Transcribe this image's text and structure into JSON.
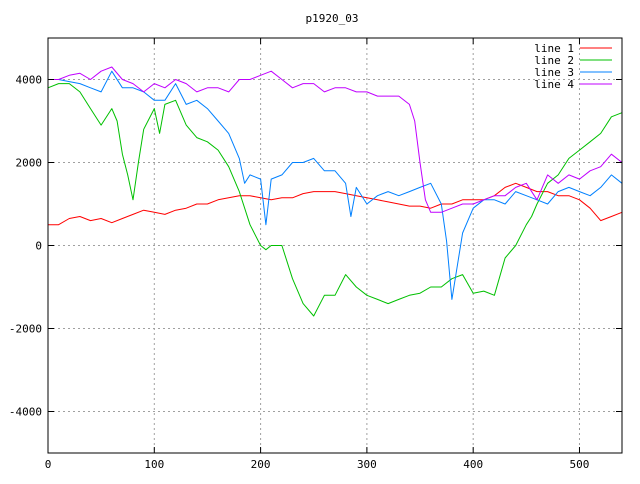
{
  "chart_data": {
    "type": "line",
    "title": "p1920_03",
    "xlabel": "",
    "ylabel": "",
    "xlim": [
      0,
      540
    ],
    "ylim": [
      -5000,
      5000
    ],
    "x_ticks": [
      0,
      100,
      200,
      300,
      400,
      500
    ],
    "y_ticks": [
      -4000,
      -2000,
      0,
      2000,
      4000
    ],
    "x_tick_labels": [
      "0",
      "100",
      "200",
      "300",
      "400",
      "500"
    ],
    "y_tick_labels": [
      "-4000",
      "-2000",
      "0",
      "2000",
      "4000"
    ],
    "grid": true,
    "legend_position": "top-right",
    "series": [
      {
        "name": "line 1",
        "color": "#ff0000",
        "x": [
          0,
          10,
          20,
          30,
          40,
          50,
          60,
          70,
          80,
          90,
          100,
          110,
          120,
          130,
          140,
          150,
          160,
          170,
          180,
          190,
          200,
          210,
          220,
          230,
          240,
          250,
          260,
          270,
          280,
          290,
          300,
          310,
          320,
          330,
          340,
          350,
          360,
          370,
          380,
          390,
          400,
          410,
          420,
          430,
          440,
          450,
          460,
          470,
          480,
          490,
          500,
          510,
          520,
          530,
          540
        ],
        "values": [
          500,
          500,
          650,
          700,
          600,
          650,
          550,
          650,
          750,
          850,
          800,
          750,
          850,
          900,
          1000,
          1000,
          1100,
          1150,
          1200,
          1200,
          1150,
          1100,
          1150,
          1150,
          1250,
          1300,
          1300,
          1300,
          1250,
          1200,
          1150,
          1100,
          1050,
          1000,
          950,
          950,
          900,
          1000,
          1000,
          1100,
          1100,
          1100,
          1200,
          1400,
          1500,
          1400,
          1300,
          1300,
          1200,
          1200,
          1100,
          900,
          600,
          700,
          800
        ]
      },
      {
        "name": "line 2",
        "color": "#00c000",
        "x": [
          0,
          10,
          20,
          30,
          40,
          50,
          60,
          65,
          70,
          75,
          80,
          85,
          90,
          100,
          105,
          110,
          120,
          130,
          140,
          150,
          160,
          170,
          180,
          190,
          200,
          205,
          210,
          220,
          230,
          240,
          250,
          260,
          270,
          280,
          290,
          300,
          310,
          320,
          330,
          340,
          350,
          360,
          370,
          380,
          390,
          400,
          410,
          420,
          430,
          440,
          450,
          455,
          460,
          470,
          480,
          490,
          500,
          510,
          520,
          530,
          540
        ],
        "values": [
          3800,
          3900,
          3900,
          3700,
          3300,
          2900,
          3300,
          3000,
          2200,
          1700,
          1100,
          2000,
          2800,
          3300,
          2700,
          3400,
          3500,
          2900,
          2600,
          2500,
          2300,
          1900,
          1300,
          500,
          0,
          -100,
          0,
          0,
          -800,
          -1400,
          -1700,
          -1200,
          -1200,
          -700,
          -1000,
          -1200,
          -1300,
          -1400,
          -1300,
          -1200,
          -1150,
          -1000,
          -1000,
          -800,
          -700,
          -1150,
          -1100,
          -1200,
          -300,
          0,
          500,
          700,
          1000,
          1500,
          1700,
          2100,
          2300,
          2500,
          2700,
          3100,
          3200
        ]
      },
      {
        "name": "line 3",
        "color": "#0080ff",
        "x": [
          0,
          10,
          20,
          30,
          40,
          50,
          60,
          70,
          80,
          90,
          100,
          110,
          120,
          130,
          140,
          150,
          160,
          170,
          180,
          185,
          190,
          200,
          205,
          210,
          220,
          230,
          240,
          250,
          260,
          270,
          280,
          285,
          290,
          300,
          310,
          320,
          330,
          340,
          350,
          360,
          370,
          375,
          380,
          390,
          400,
          410,
          420,
          430,
          440,
          450,
          460,
          470,
          480,
          490,
          500,
          510,
          520,
          530,
          540
        ],
        "values": [
          4000,
          4000,
          3950,
          3900,
          3800,
          3700,
          4200,
          3800,
          3800,
          3700,
          3500,
          3500,
          3900,
          3400,
          3500,
          3300,
          3000,
          2700,
          2100,
          1500,
          1700,
          1600,
          500,
          1600,
          1700,
          2000,
          2000,
          2100,
          1800,
          1800,
          1500,
          700,
          1400,
          1000,
          1200,
          1300,
          1200,
          1300,
          1400,
          1500,
          1000,
          100,
          -1300,
          300,
          900,
          1100,
          1100,
          1000,
          1300,
          1200,
          1100,
          1000,
          1300,
          1400,
          1300,
          1200,
          1400,
          1700,
          1500
        ]
      },
      {
        "name": "line 4",
        "color": "#c000ff",
        "x": [
          0,
          10,
          20,
          30,
          40,
          50,
          60,
          70,
          80,
          90,
          100,
          110,
          120,
          130,
          140,
          150,
          160,
          170,
          180,
          190,
          200,
          210,
          220,
          230,
          240,
          250,
          260,
          270,
          280,
          290,
          300,
          310,
          320,
          330,
          340,
          345,
          350,
          355,
          360,
          370,
          380,
          390,
          400,
          410,
          420,
          430,
          440,
          450,
          460,
          470,
          480,
          490,
          500,
          510,
          520,
          530,
          540
        ],
        "values": [
          4000,
          4000,
          4100,
          4150,
          4000,
          4200,
          4300,
          4000,
          3900,
          3700,
          3900,
          3800,
          4000,
          3900,
          3700,
          3800,
          3800,
          3700,
          4000,
          4000,
          4100,
          4200,
          4000,
          3800,
          3900,
          3900,
          3700,
          3800,
          3800,
          3700,
          3700,
          3600,
          3600,
          3600,
          3400,
          3000,
          2000,
          1100,
          800,
          800,
          900,
          1000,
          1000,
          1100,
          1200,
          1200,
          1400,
          1500,
          1100,
          1700,
          1500,
          1700,
          1600,
          1800,
          1900,
          2200,
          2000
        ]
      }
    ]
  }
}
